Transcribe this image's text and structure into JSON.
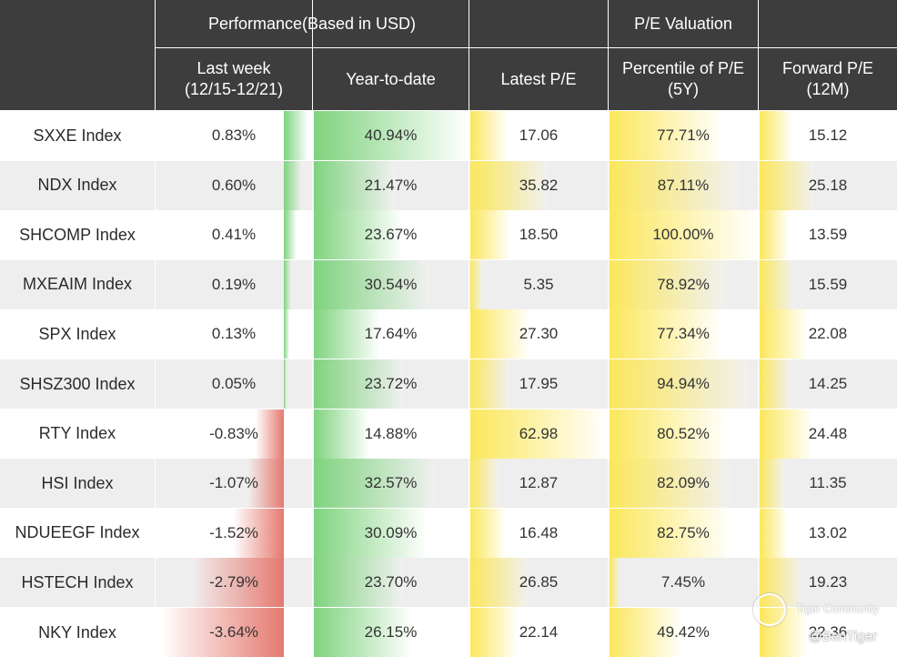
{
  "header": {
    "group_performance": "Performance(Based in USD)",
    "group_valuation": "P/E Valuation",
    "columns": [
      {
        "line1": "Last week",
        "line2": "(12/15-12/21)"
      },
      {
        "line1": "Year-to-date",
        "line2": ""
      },
      {
        "line1": "Latest P/E",
        "line2": ""
      },
      {
        "line1": "Percentile of P/E",
        "line2": "(5Y)"
      },
      {
        "line1": "Forward P/E",
        "line2": "(12M)"
      }
    ]
  },
  "chart_data": {
    "type": "table",
    "rows": [
      {
        "index": "SXXE Index",
        "last_week": "0.83%",
        "ytd": "40.94%",
        "latest_pe": "17.06",
        "pe_pct": "77.71%",
        "fwd_pe": "15.12"
      },
      {
        "index": "NDX Index",
        "last_week": "0.60%",
        "ytd": "21.47%",
        "latest_pe": "35.82",
        "pe_pct": "87.11%",
        "fwd_pe": "25.18"
      },
      {
        "index": "SHCOMP Index",
        "last_week": "0.41%",
        "ytd": "23.67%",
        "latest_pe": "18.50",
        "pe_pct": "100.00%",
        "fwd_pe": "13.59"
      },
      {
        "index": "MXEAIM Index",
        "last_week": "0.19%",
        "ytd": "30.54%",
        "latest_pe": "5.35",
        "pe_pct": "78.92%",
        "fwd_pe": "15.59"
      },
      {
        "index": "SPX Index",
        "last_week": "0.13%",
        "ytd": "17.64%",
        "latest_pe": "27.30",
        "pe_pct": "77.34%",
        "fwd_pe": "22.08"
      },
      {
        "index": "SHSZ300 Index",
        "last_week": "0.05%",
        "ytd": "23.72%",
        "latest_pe": "17.95",
        "pe_pct": "94.94%",
        "fwd_pe": "14.25"
      },
      {
        "index": "RTY Index",
        "last_week": "-0.83%",
        "ytd": "14.88%",
        "latest_pe": "62.98",
        "pe_pct": "80.52%",
        "fwd_pe": "24.48"
      },
      {
        "index": "HSI Index",
        "last_week": "-1.07%",
        "ytd": "32.57%",
        "latest_pe": "12.87",
        "pe_pct": "82.09%",
        "fwd_pe": "11.35"
      },
      {
        "index": "NDUEEGF Index",
        "last_week": "-1.52%",
        "ytd": "30.09%",
        "latest_pe": "16.48",
        "pe_pct": "82.75%",
        "fwd_pe": "13.02"
      },
      {
        "index": "HSTECH Index",
        "last_week": "-2.79%",
        "ytd": "23.70%",
        "latest_pe": "26.85",
        "pe_pct": "7.45%",
        "fwd_pe": "19.23"
      },
      {
        "index": "NKY Index",
        "last_week": "-3.64%",
        "ytd": "26.15%",
        "latest_pe": "22.14",
        "pe_pct": "49.42%",
        "fwd_pe": "22.36"
      }
    ]
  },
  "colors": {
    "header_bg": "#3d3d3d",
    "row_alt": "#eeeeee",
    "positive_bar": "#7fd37f",
    "negative_bar": "#e5796f",
    "pe_bar": "#fbe75c"
  },
  "watermark": {
    "brand": "Tiger Community",
    "handle": "@BenTiger"
  }
}
